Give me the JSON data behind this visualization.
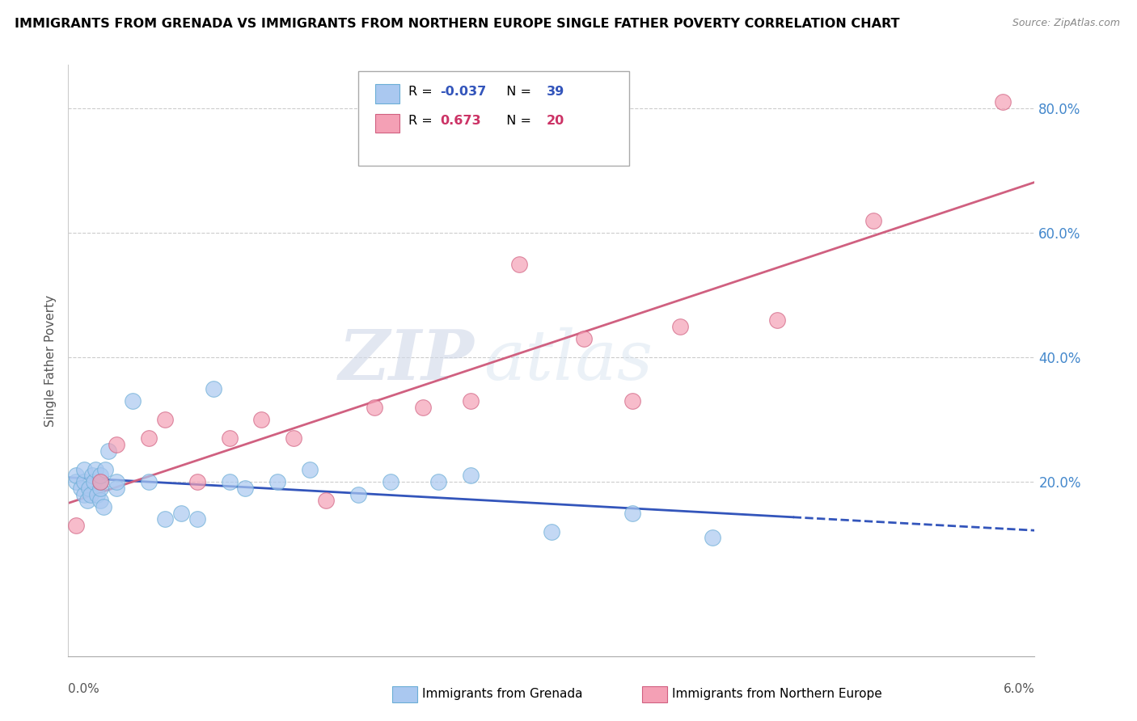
{
  "title": "IMMIGRANTS FROM GRENADA VS IMMIGRANTS FROM NORTHERN EUROPE SINGLE FATHER POVERTY CORRELATION CHART",
  "source": "Source: ZipAtlas.com",
  "ylabel": "Single Father Poverty",
  "y_ticks": [
    0.2,
    0.4,
    0.6,
    0.8
  ],
  "y_tick_labels": [
    "20.0%",
    "40.0%",
    "60.0%",
    "80.0%"
  ],
  "x_lim": [
    0.0,
    0.06
  ],
  "y_lim": [
    -0.08,
    0.87
  ],
  "grenada_color": "#aac8f0",
  "grenada_edge": "#6baed6",
  "northern_color": "#f4a0b5",
  "northern_edge": "#d06080",
  "line_color_grenada": "#3355bb",
  "line_color_northern": "#d06080",
  "watermark_zip": "ZIP",
  "watermark_atlas": "atlas",
  "grenada_x": [
    0.0005,
    0.0005,
    0.0008,
    0.001,
    0.001,
    0.001,
    0.0012,
    0.0013,
    0.0014,
    0.0015,
    0.0016,
    0.0017,
    0.0018,
    0.002,
    0.002,
    0.002,
    0.002,
    0.0022,
    0.0023,
    0.0025,
    0.003,
    0.003,
    0.004,
    0.005,
    0.006,
    0.007,
    0.008,
    0.009,
    0.01,
    0.011,
    0.013,
    0.015,
    0.018,
    0.02,
    0.023,
    0.025,
    0.03,
    0.035,
    0.04
  ],
  "grenada_y": [
    0.2,
    0.21,
    0.19,
    0.18,
    0.2,
    0.22,
    0.17,
    0.19,
    0.18,
    0.21,
    0.2,
    0.22,
    0.18,
    0.17,
    0.19,
    0.2,
    0.21,
    0.16,
    0.22,
    0.25,
    0.19,
    0.2,
    0.33,
    0.2,
    0.14,
    0.15,
    0.14,
    0.35,
    0.2,
    0.19,
    0.2,
    0.22,
    0.18,
    0.2,
    0.2,
    0.21,
    0.12,
    0.15,
    0.11
  ],
  "northern_x": [
    0.0005,
    0.002,
    0.003,
    0.005,
    0.006,
    0.008,
    0.01,
    0.012,
    0.014,
    0.016,
    0.019,
    0.022,
    0.025,
    0.028,
    0.032,
    0.035,
    0.038,
    0.044,
    0.05,
    0.058
  ],
  "northern_y": [
    0.13,
    0.2,
    0.26,
    0.27,
    0.3,
    0.2,
    0.27,
    0.3,
    0.27,
    0.17,
    0.32,
    0.32,
    0.33,
    0.55,
    0.43,
    0.33,
    0.45,
    0.46,
    0.62,
    0.81
  ],
  "grenada_R": -0.037,
  "grenada_N": 39,
  "northern_R": 0.673,
  "northern_N": 20
}
